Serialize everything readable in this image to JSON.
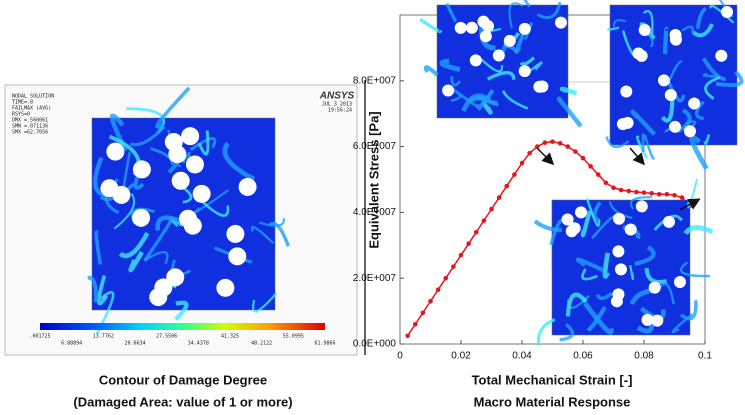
{
  "left_panel": {
    "header_lines": [
      "NODAL SOLUTION",
      "TIME=.8",
      "FAILMAX  (AVG)",
      "RSYS=0",
      "DMX =.560061",
      "SMN =.071136",
      "SMX =62.7056"
    ],
    "logo": "ANSYS",
    "date": "JUL  3 2013",
    "time": "19:56:24",
    "colorbar_labels": [
      ".001725",
      "6.88894",
      "13.7762",
      "20.6634",
      "27.5506",
      "34.4378",
      "41.325",
      "48.2122",
      "55.0995",
      "61.9866"
    ],
    "caption_line1": "Contour of Damage Degree",
    "caption_line2": "(Damaged Area: value of 1 or more)"
  },
  "chart_data": {
    "type": "line",
    "x_label": "Total Mechanical Strain [-]",
    "y_label": "Equivalent Stress [Pa]",
    "caption": "Macro Material Response",
    "xlim": [
      0,
      0.1
    ],
    "xticks": [
      0,
      0.02,
      0.04,
      0.06,
      0.08,
      0.1
    ],
    "ylim": [
      0,
      100000000
    ],
    "yticks": [
      {
        "value": 0,
        "label": "0.0E+000"
      },
      {
        "value": 20000000,
        "label": "2.0E+007"
      },
      {
        "value": 40000000,
        "label": "4.0E+007"
      },
      {
        "value": 60000000,
        "label": "6.0E+007"
      },
      {
        "value": 80000000,
        "label": "8.0E+007"
      }
    ],
    "grid": false,
    "color": "#e8141b",
    "x": [
      0.0025,
      0.005,
      0.0075,
      0.01,
      0.0125,
      0.015,
      0.0175,
      0.02,
      0.0225,
      0.025,
      0.0275,
      0.03,
      0.0325,
      0.035,
      0.0375,
      0.04,
      0.0425,
      0.045,
      0.0475,
      0.05,
      0.0525,
      0.055,
      0.0575,
      0.06,
      0.0625,
      0.065,
      0.0675,
      0.07,
      0.0725,
      0.075,
      0.0775,
      0.08,
      0.0825,
      0.085,
      0.0875,
      0.09,
      0.0925,
      0.095
    ],
    "values": [
      2500000,
      6000000,
      9500000,
      13000000,
      16500000,
      20000000,
      23500000,
      27000000,
      30500000,
      34000000,
      37500000,
      41000000,
      44500000,
      48000000,
      51500000,
      55000000,
      58000000,
      60000000,
      61200000,
      61500000,
      61000000,
      60000000,
      58500000,
      56500000,
      54000000,
      51500000,
      49000000,
      47500000,
      46800000,
      46500000,
      46200000,
      46000000,
      45800000,
      45500000,
      45500000,
      45200000,
      44500000,
      42000000
    ]
  }
}
